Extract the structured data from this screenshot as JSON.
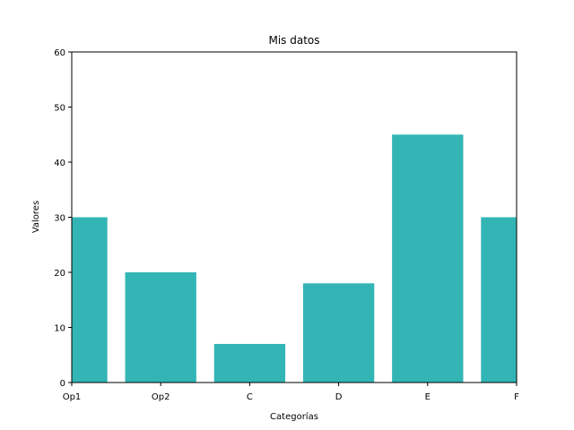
{
  "chart_data": {
    "type": "bar",
    "title": "Mis datos",
    "xlabel": "Categorías",
    "ylabel": "Valores",
    "categories": [
      "Op1",
      "Op2",
      "C",
      "D",
      "E",
      "F"
    ],
    "values": [
      30,
      20,
      7,
      18,
      45,
      30
    ],
    "ylim": [
      0,
      60
    ],
    "yticks": [
      0,
      10,
      20,
      30,
      40,
      50,
      60
    ],
    "bar_color": "#33b5b5",
    "grid": false,
    "legend": "none"
  }
}
